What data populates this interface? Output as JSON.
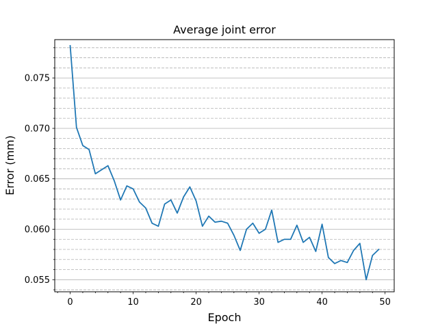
{
  "chart_data": {
    "type": "line",
    "title": "Average joint error",
    "xlabel": "Epoch",
    "ylabel": "Error (mm)",
    "xlim": [
      -2.45,
      51.45
    ],
    "ylim": [
      0.0538,
      0.0788
    ],
    "xticks": [
      0,
      10,
      20,
      30,
      40,
      50
    ],
    "xtick_labels": [
      "0",
      "10",
      "20",
      "30",
      "40",
      "50"
    ],
    "yticks": [
      0.055,
      0.06,
      0.065,
      0.07,
      0.075
    ],
    "ytick_labels": [
      "0.055",
      "0.060",
      "0.065",
      "0.070",
      "0.075"
    ],
    "y_minor_step": 0.001,
    "x_minor_step": 2,
    "grid": {
      "major": "solid",
      "minor": "dashed",
      "axis": "y"
    },
    "colors": {
      "line": "#1f77b4",
      "major_grid": "#b0b0b0",
      "minor_grid": "#b0b0b0"
    },
    "series": [
      {
        "x": [
          0,
          1,
          2,
          3,
          4,
          5,
          6,
          7,
          8,
          9,
          10,
          11,
          12,
          13,
          14,
          15,
          16,
          17,
          18,
          19,
          20,
          21,
          22,
          23,
          24,
          25,
          26,
          27,
          28,
          29,
          30,
          31,
          32,
          33,
          34,
          35,
          36,
          37,
          38,
          39,
          40,
          41,
          42,
          43,
          44,
          45,
          46,
          47,
          48,
          49
        ],
        "values": [
          0.0782,
          0.0701,
          0.0683,
          0.0679,
          0.0655,
          0.0659,
          0.0663,
          0.0648,
          0.0629,
          0.0643,
          0.064,
          0.0627,
          0.0621,
          0.0606,
          0.0603,
          0.0625,
          0.0629,
          0.0616,
          0.0632,
          0.0642,
          0.0628,
          0.0603,
          0.0613,
          0.0607,
          0.0608,
          0.0606,
          0.0594,
          0.0579,
          0.06,
          0.0606,
          0.0596,
          0.06,
          0.0619,
          0.0587,
          0.059,
          0.059,
          0.0604,
          0.0587,
          0.0592,
          0.0578,
          0.0605,
          0.0572,
          0.0566,
          0.0569,
          0.0567,
          0.0579,
          0.0586,
          0.055,
          0.0574,
          0.058
        ]
      }
    ]
  }
}
